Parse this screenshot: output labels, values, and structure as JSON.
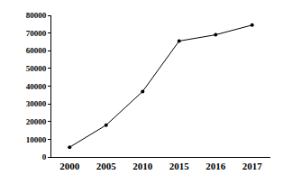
{
  "chart_data": {
    "type": "line",
    "categories": [
      "2000",
      "2005",
      "2010",
      "2015",
      "2016",
      "2017"
    ],
    "values": [
      5500,
      18000,
      37000,
      65500,
      69000,
      74500
    ],
    "color": "#000000",
    "marker": "circle",
    "line_style": "solid",
    "ylim": [
      0,
      80000
    ],
    "yticks": [
      0,
      10000,
      20000,
      30000,
      40000,
      50000,
      60000,
      70000,
      80000
    ],
    "grid": false
  }
}
